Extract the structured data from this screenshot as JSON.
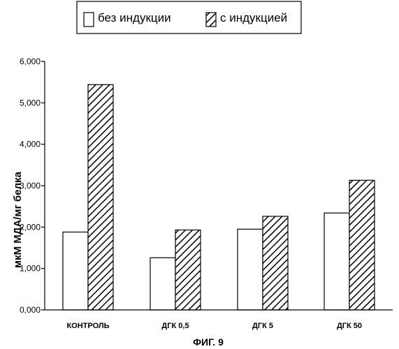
{
  "legend": {
    "items": [
      {
        "label": "без индукции",
        "pattern": "plain"
      },
      {
        "label": "с индукцией",
        "pattern": "hatched"
      }
    ]
  },
  "figure_caption": "ФИГ. 9",
  "chart_data": {
    "type": "bar",
    "categories": [
      "КОНТРОЛЬ",
      "ДГК 0,5",
      "ДГК 5",
      "ДГК 50"
    ],
    "series": [
      {
        "name": "без индукции",
        "values": [
          1.88,
          1.26,
          1.95,
          2.34
        ]
      },
      {
        "name": "с индукцией",
        "values": [
          5.44,
          1.93,
          2.26,
          3.13
        ]
      }
    ],
    "title": "",
    "xlabel": "",
    "ylabel": "мкМ МДА/мг белка",
    "ylim": [
      0,
      6
    ],
    "yticks": [
      0,
      1,
      2,
      3,
      4,
      5,
      6
    ],
    "ytick_labels": [
      "0,000",
      "1,000",
      "2,000",
      "3,000",
      "4,000",
      "5,000",
      "6,000"
    ],
    "grid": false,
    "legend_position": "top"
  }
}
